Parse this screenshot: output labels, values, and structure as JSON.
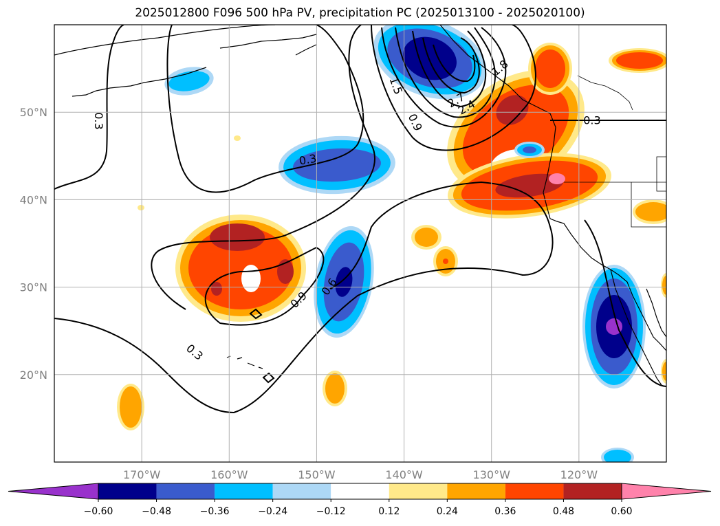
{
  "title": "2025012800 F096 500 hPa PV, precipitation PC (2025013100 - 2025020100)",
  "map": {
    "lon_range": [
      -180,
      -110
    ],
    "lat_range": [
      10,
      60
    ],
    "lon_ticks": [
      {
        "lon": -170,
        "label": "170°W"
      },
      {
        "lon": -160,
        "label": "160°W"
      },
      {
        "lon": -150,
        "label": "150°W"
      },
      {
        "lon": -140,
        "label": "140°W"
      },
      {
        "lon": -130,
        "label": "130°W"
      },
      {
        "lon": -120,
        "label": "120°W"
      }
    ],
    "lat_ticks": [
      {
        "lat": 50,
        "label": "50°N"
      },
      {
        "lat": 40,
        "label": "40°N"
      },
      {
        "lat": 30,
        "label": "30°N"
      },
      {
        "lat": 20,
        "label": "20°N"
      }
    ],
    "grid": true,
    "contour_labels": [
      {
        "lon": -175,
        "lat": 49,
        "text": "0.3",
        "rot": 90
      },
      {
        "lon": -151,
        "lat": 44.5,
        "text": "0.3",
        "rot": -10
      },
      {
        "lon": -141,
        "lat": 53,
        "text": "1.5",
        "rot": 70
      },
      {
        "lon": -138.8,
        "lat": 48.8,
        "text": "0.9",
        "rot": 65
      },
      {
        "lon": -134,
        "lat": 51.3,
        "text": "2.7",
        "rot": -30
      },
      {
        "lon": -132.8,
        "lat": 50.5,
        "text": "2.4",
        "rot": -30
      },
      {
        "lon": -129,
        "lat": 55,
        "text": "1.8",
        "rot": -40
      },
      {
        "lon": -118.5,
        "lat": 49,
        "text": "0.3",
        "rot": 0
      },
      {
        "lon": -152,
        "lat": 28.5,
        "text": "0.9",
        "rot": -45
      },
      {
        "lon": -148.5,
        "lat": 30,
        "text": "0.6",
        "rot": -55
      },
      {
        "lon": -164,
        "lat": 22.5,
        "text": "0.3",
        "rot": 40
      }
    ]
  },
  "colorbar": {
    "levels": [
      "−0.60",
      "−0.48",
      "−0.36",
      "−0.24",
      "−0.12",
      "0.12",
      "0.24",
      "0.36",
      "0.48",
      "0.60"
    ],
    "colors": [
      "#9932cc",
      "#00008b",
      "#3a5bcd",
      "#00bfff",
      "#add8f6",
      "#ffffff",
      "#ffe98a",
      "#ffa500",
      "#ff4500",
      "#b22222",
      "#ff82ab"
    ]
  },
  "colors": {
    "land_line": "#000000",
    "pv_contour": "#000000",
    "grid": "#b0b0b0"
  }
}
